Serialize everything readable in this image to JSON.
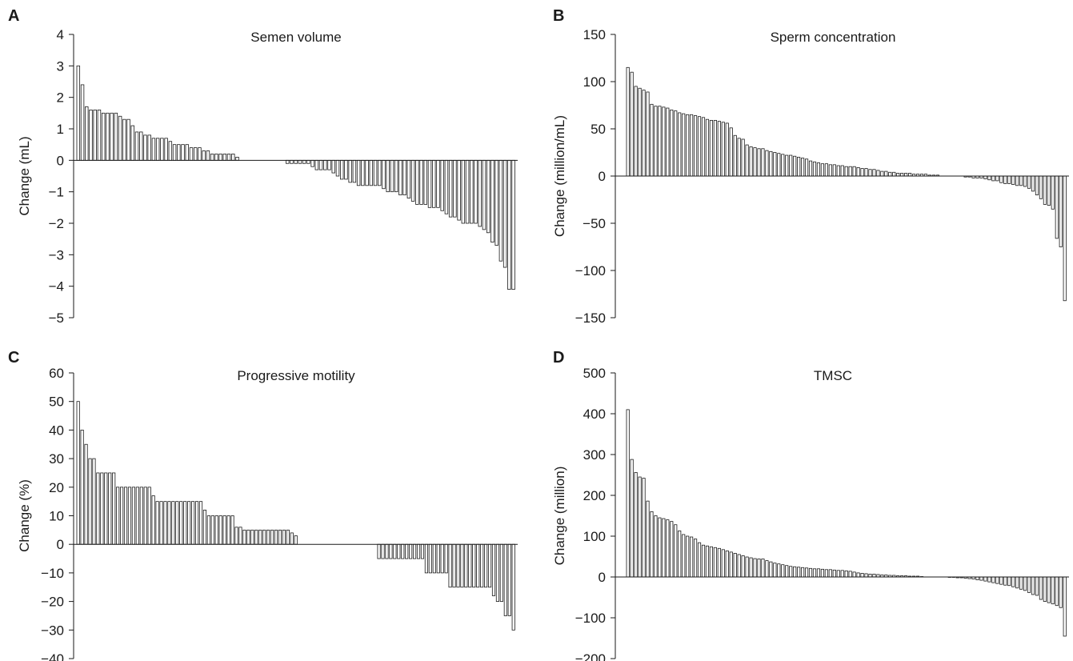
{
  "chart_data": [
    {
      "panel": "A",
      "type": "bar",
      "title": "Semen volume",
      "xlabel": "",
      "ylabel": "Change (mL)",
      "ylim": [
        -5,
        4
      ],
      "yticks": [
        4,
        3,
        2,
        1,
        0,
        -1,
        -2,
        -3,
        -4,
        -5
      ],
      "ytick_labels": [
        "4",
        "3",
        "2",
        "1",
        "0",
        "−1",
        "−2",
        "−3",
        "−4",
        "−5"
      ],
      "values": [
        3.0,
        2.4,
        1.7,
        1.6,
        1.6,
        1.6,
        1.5,
        1.5,
        1.5,
        1.5,
        1.4,
        1.3,
        1.3,
        1.1,
        0.9,
        0.9,
        0.8,
        0.8,
        0.7,
        0.7,
        0.7,
        0.7,
        0.6,
        0.5,
        0.5,
        0.5,
        0.5,
        0.4,
        0.4,
        0.4,
        0.3,
        0.3,
        0.2,
        0.2,
        0.2,
        0.2,
        0.2,
        0.2,
        0.1,
        0,
        0,
        0,
        0,
        0,
        0,
        0,
        0,
        0,
        0,
        0,
        -0.1,
        -0.1,
        -0.1,
        -0.1,
        -0.1,
        -0.1,
        -0.2,
        -0.3,
        -0.3,
        -0.3,
        -0.3,
        -0.4,
        -0.5,
        -0.6,
        -0.6,
        -0.7,
        -0.7,
        -0.8,
        -0.8,
        -0.8,
        -0.8,
        -0.8,
        -0.8,
        -0.9,
        -1.0,
        -1.0,
        -1.0,
        -1.1,
        -1.1,
        -1.2,
        -1.3,
        -1.4,
        -1.4,
        -1.4,
        -1.5,
        -1.5,
        -1.5,
        -1.6,
        -1.7,
        -1.8,
        -1.8,
        -1.9,
        -2.0,
        -2.0,
        -2.0,
        -2.0,
        -2.1,
        -2.2,
        -2.3,
        -2.6,
        -2.7,
        -3.2,
        -3.4,
        -4.1,
        -4.1
      ]
    },
    {
      "panel": "B",
      "type": "bar",
      "title": "Sperm concentration",
      "xlabel": "",
      "ylabel": "Change (million/mL)",
      "ylim": [
        -150,
        150
      ],
      "yticks": [
        150,
        100,
        50,
        0,
        -50,
        -100,
        -150
      ],
      "ytick_labels": [
        "150",
        "100",
        "50",
        "0",
        "−50",
        "−100",
        "−150"
      ],
      "values": [
        115,
        110,
        95,
        93,
        91,
        89,
        76,
        74,
        74,
        73,
        72,
        70,
        69,
        67,
        66,
        65,
        65,
        64,
        63,
        62,
        60,
        59,
        59,
        58,
        57,
        56,
        51,
        43,
        40,
        39,
        33,
        31,
        30,
        29,
        29,
        27,
        26,
        25,
        24,
        23,
        22,
        22,
        21,
        20,
        19,
        18,
        16,
        15,
        14,
        13,
        13,
        12,
        12,
        11,
        11,
        10,
        10,
        10,
        9,
        8,
        8,
        7,
        7,
        6,
        5,
        5,
        4,
        4,
        3,
        3,
        3,
        3,
        2,
        2,
        2,
        2,
        1,
        1,
        1,
        0,
        0,
        0,
        0,
        0,
        0,
        -1,
        -1,
        -2,
        -2,
        -2,
        -3,
        -4,
        -5,
        -5,
        -7,
        -8,
        -8,
        -9,
        -10,
        -10,
        -11,
        -13,
        -16,
        -20,
        -24,
        -30,
        -31,
        -35,
        -66,
        -75,
        -132
      ]
    },
    {
      "panel": "C",
      "type": "bar",
      "title": "Progressive motility",
      "xlabel": "",
      "ylabel": "Change (%)",
      "ylim": [
        -40,
        60
      ],
      "yticks": [
        60,
        50,
        40,
        30,
        20,
        10,
        0,
        -10,
        -20,
        -30,
        -40
      ],
      "ytick_labels": [
        "60",
        "50",
        "40",
        "30",
        "20",
        "10",
        "0",
        "−10",
        "−20",
        "−30",
        "−40"
      ],
      "values": [
        50,
        40,
        35,
        30,
        30,
        25,
        25,
        25,
        25,
        25,
        20,
        20,
        20,
        20,
        20,
        20,
        20,
        20,
        20,
        17,
        15,
        15,
        15,
        15,
        15,
        15,
        15,
        15,
        15,
        15,
        15,
        15,
        12,
        10,
        10,
        10,
        10,
        10,
        10,
        10,
        6,
        6,
        5,
        5,
        5,
        5,
        5,
        5,
        5,
        5,
        5,
        5,
        5,
        5,
        4,
        3,
        0,
        0,
        0,
        0,
        0,
        0,
        0,
        0,
        0,
        0,
        0,
        0,
        0,
        0,
        0,
        0,
        0,
        0,
        0,
        0,
        -5,
        -5,
        -5,
        -5,
        -5,
        -5,
        -5,
        -5,
        -5,
        -5,
        -5,
        -5,
        -10,
        -10,
        -10,
        -10,
        -10,
        -10,
        -15,
        -15,
        -15,
        -15,
        -15,
        -15,
        -15,
        -15,
        -15,
        -15,
        -15,
        -18,
        -20,
        -20,
        -25,
        -25,
        -30
      ]
    },
    {
      "panel": "D",
      "type": "bar",
      "title": "TMSC",
      "xlabel": "",
      "ylabel": "Change (million)",
      "ylim": [
        -200,
        500
      ],
      "yticks": [
        500,
        400,
        300,
        200,
        100,
        0,
        -100,
        -200
      ],
      "ytick_labels": [
        "500",
        "400",
        "300",
        "200",
        "100",
        "0",
        "−100",
        "−200"
      ],
      "values": [
        410,
        288,
        256,
        245,
        242,
        186,
        160,
        150,
        145,
        143,
        140,
        136,
        128,
        113,
        104,
        100,
        98,
        93,
        84,
        78,
        76,
        74,
        72,
        70,
        67,
        64,
        61,
        58,
        55,
        52,
        49,
        47,
        45,
        44,
        44,
        40,
        37,
        34,
        32,
        30,
        28,
        26,
        25,
        24,
        23,
        22,
        21,
        20,
        20,
        19,
        18,
        18,
        17,
        16,
        16,
        15,
        14,
        12,
        10,
        9,
        8,
        7,
        7,
        6,
        5,
        5,
        4,
        4,
        3,
        3,
        3,
        2,
        2,
        2,
        1,
        0,
        0,
        0,
        0,
        0,
        0,
        -1,
        -1,
        -2,
        -2,
        -3,
        -4,
        -5,
        -7,
        -8,
        -10,
        -12,
        -14,
        -16,
        -18,
        -20,
        -21,
        -24,
        -27,
        -30,
        -33,
        -38,
        -43,
        -45,
        -55,
        -60,
        -63,
        -66,
        -70,
        -75,
        -145
      ]
    }
  ]
}
